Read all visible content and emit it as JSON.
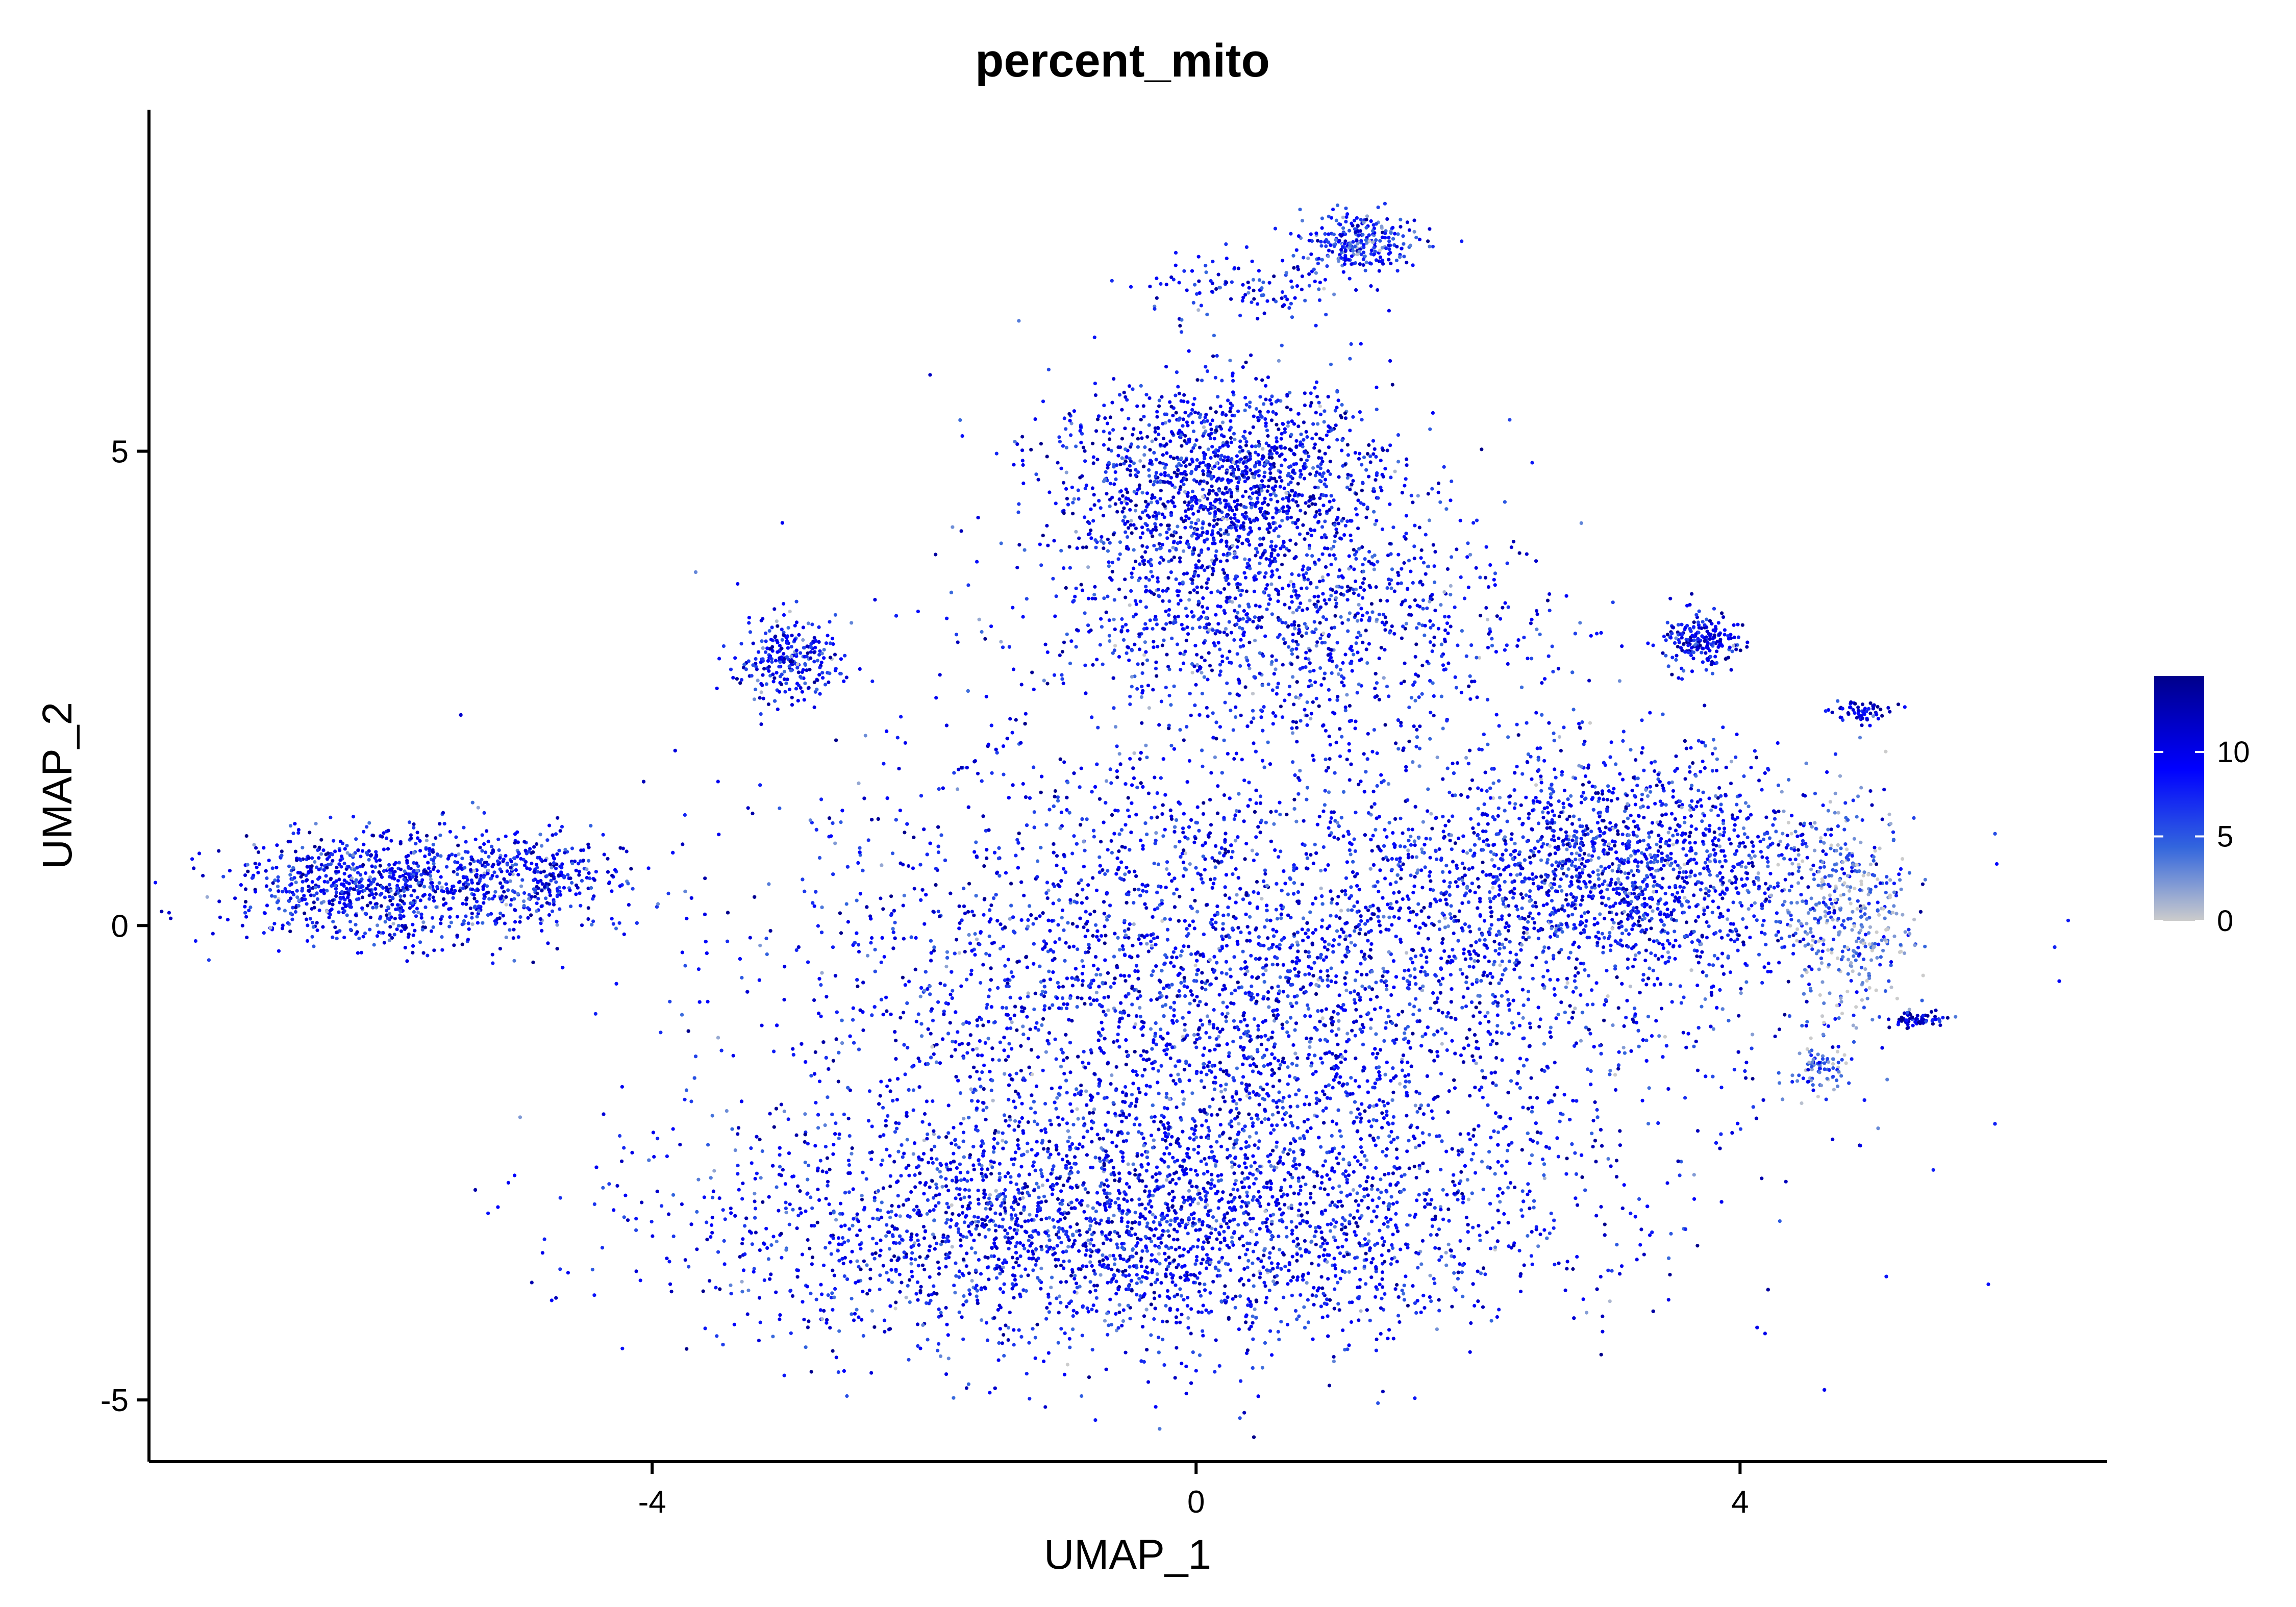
{
  "chart_data": {
    "type": "scatter",
    "title": "percent_mito",
    "xlabel": "UMAP_1",
    "ylabel": "UMAP_2",
    "xlim": [
      -7.7,
      6.7
    ],
    "ylim": [
      -5.65,
      8.6
    ],
    "x_ticks": [
      -4,
      0,
      4
    ],
    "y_ticks": [
      -5,
      0,
      5
    ],
    "x_tick_labels": [
      "-4",
      "0",
      "4"
    ],
    "y_tick_labels": [
      "-5",
      "0",
      "5"
    ],
    "grid": false,
    "legend_position": "right",
    "color_scale": {
      "min": 0,
      "max": 14.5,
      "ticks": [
        0,
        5,
        10
      ],
      "tick_labels": [
        "0",
        "5",
        "10"
      ],
      "colors": [
        "#cccccc",
        "#3366dd",
        "#0000ff",
        "#00008b"
      ]
    },
    "regions": [
      {
        "name": "main body",
        "cx": 0.3,
        "cy": -0.7,
        "sx": 2.25,
        "sy": 1.85,
        "n": 6200,
        "mito_mean": 8.5
      },
      {
        "name": "lower body",
        "cx": -0.6,
        "cy": -3.2,
        "sx": 2.0,
        "sy": 0.85,
        "n": 2600,
        "mito_mean": 8.5
      },
      {
        "name": "upper lobe",
        "cx": 0.2,
        "cy": 4.7,
        "sx": 0.85,
        "sy": 0.7,
        "n": 1500,
        "mito_mean": 9.0
      },
      {
        "name": "upper bridge",
        "cx": 0.6,
        "cy": 3.2,
        "sx": 1.2,
        "sy": 0.8,
        "n": 1100,
        "mito_mean": 8.5
      },
      {
        "name": "right arm",
        "cx": 3.2,
        "cy": 0.6,
        "sx": 1.0,
        "sy": 0.8,
        "n": 1600,
        "mito_mean": 8.0
      },
      {
        "name": "right tip",
        "cx": 4.8,
        "cy": 0.1,
        "sx": 0.3,
        "sy": 0.7,
        "n": 380,
        "mito_mean": 3.0
      },
      {
        "name": "left cluster",
        "cx": -6.0,
        "cy": 0.4,
        "sx": 0.75,
        "sy": 0.38,
        "n": 900,
        "mito_mean": 8.5
      },
      {
        "name": "left mid",
        "cx": -4.9,
        "cy": 0.5,
        "sx": 0.45,
        "sy": 0.35,
        "n": 320,
        "mito_mean": 8.5
      },
      {
        "name": "left upper cluster",
        "cx": -3.0,
        "cy": 2.8,
        "sx": 0.25,
        "sy": 0.3,
        "n": 260,
        "mito_mean": 8.5
      },
      {
        "name": "top cluster",
        "cx": 1.2,
        "cy": 7.2,
        "sx": 0.28,
        "sy": 0.22,
        "n": 260,
        "mito_mean": 7.0
      },
      {
        "name": "top trail",
        "cx": 0.4,
        "cy": 6.7,
        "sx": 0.5,
        "sy": 0.25,
        "n": 120,
        "mito_mean": 8.5
      },
      {
        "name": "right upper cluster",
        "cx": 3.7,
        "cy": 3.0,
        "sx": 0.18,
        "sy": 0.2,
        "n": 200,
        "mito_mean": 9.5
      },
      {
        "name": "far right cluster",
        "cx": 4.9,
        "cy": 2.25,
        "sx": 0.15,
        "sy": 0.08,
        "n": 60,
        "mito_mean": 10.5
      },
      {
        "name": "far right tail",
        "cx": 5.3,
        "cy": -1.0,
        "sx": 0.18,
        "sy": 0.06,
        "n": 60,
        "mito_mean": 11.0
      },
      {
        "name": "lower right tip",
        "cx": 4.6,
        "cy": -1.5,
        "sx": 0.15,
        "sy": 0.18,
        "n": 80,
        "mito_mean": 3.5
      }
    ]
  }
}
